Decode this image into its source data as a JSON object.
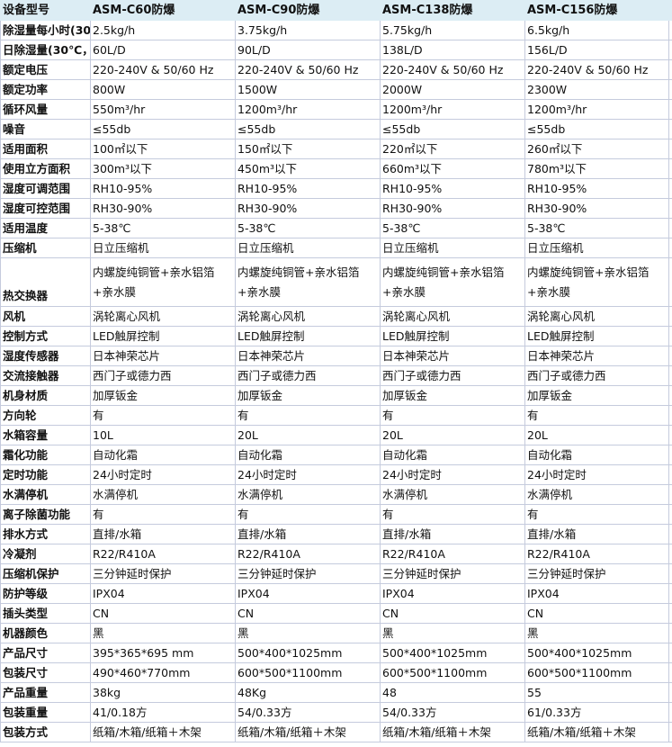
{
  "header": {
    "label": "设备型号",
    "models": [
      "ASM-C60防爆",
      "ASM-C90防爆",
      "ASM-C138防爆",
      "ASM-C156防爆"
    ]
  },
  "rows": [
    {
      "label": "除湿量每小时(30",
      "values": [
        "2.5kg/h",
        "3.75kg/h",
        "5.75kg/h",
        "6.5kg/h"
      ]
    },
    {
      "label": "日除湿量(30℃，",
      "values": [
        "60L/D",
        "90L/D",
        "138L/D",
        "156L/D"
      ]
    },
    {
      "label": "额定电压",
      "values": [
        "220-240V & 50/60 Hz",
        "220-240V & 50/60 Hz",
        "220-240V & 50/60 Hz",
        "220-240V & 50/60 Hz"
      ]
    },
    {
      "label": "额定功率",
      "values": [
        "800W",
        "1500W",
        "2000W",
        "2300W"
      ]
    },
    {
      "label": "循环风量",
      "values": [
        "550m³/hr",
        "1200m³/hr",
        "1200m³/hr",
        "1200m³/hr"
      ]
    },
    {
      "label": "噪音",
      "values": [
        "≤55db",
        "≤55db",
        "≤55db",
        "≤55db"
      ]
    },
    {
      "label": "适用面积",
      "values": [
        "100㎡以下",
        "150㎡以下",
        "220㎡以下",
        "260㎡以下"
      ]
    },
    {
      "label": "使用立方面积",
      "values": [
        "300m³以下",
        "450m³以下",
        "660m³以下",
        "780m³以下"
      ]
    },
    {
      "label": "湿度可调范围",
      "values": [
        "RH10-95%",
        "RH10-95%",
        "RH10-95%",
        "RH10-95%"
      ]
    },
    {
      "label": "湿度可控范围",
      "values": [
        "RH30-90%",
        "RH30-90%",
        "RH30-90%",
        "RH30-90%"
      ]
    },
    {
      "label": "适用温度",
      "values": [
        "5-38℃",
        "5-38℃",
        "5-38℃",
        "5-38℃"
      ]
    },
    {
      "label": "压缩机",
      "values": [
        "日立压缩机",
        "日立压缩机",
        "日立压缩机",
        "日立压缩机"
      ]
    },
    {
      "label": "热交换器",
      "tall": true,
      "values": [
        "内螺旋纯铜管+亲水铝箔+亲水膜",
        "内螺旋纯铜管+亲水铝箔+亲水膜",
        "内螺旋纯铜管+亲水铝箔+亲水膜",
        "内螺旋纯铜管+亲水铝箔+亲水膜"
      ]
    },
    {
      "label": "风机",
      "values": [
        "涡轮离心风机",
        "涡轮离心风机",
        "涡轮离心风机",
        "涡轮离心风机"
      ]
    },
    {
      "label": "控制方式",
      "values": [
        "LED触屏控制",
        "LED触屏控制",
        "LED触屏控制",
        "LED触屏控制"
      ]
    },
    {
      "label": "湿度传感器",
      "values": [
        "日本神荣芯片",
        "日本神荣芯片",
        "日本神荣芯片",
        "日本神荣芯片"
      ]
    },
    {
      "label": "交流接触器",
      "values": [
        "西门子或德力西",
        "西门子或德力西",
        "西门子或德力西",
        "西门子或德力西"
      ]
    },
    {
      "label": "机身材质",
      "values": [
        "加厚钣金",
        "加厚钣金",
        "加厚钣金",
        "加厚钣金"
      ]
    },
    {
      "label": "方向轮",
      "values": [
        "有",
        "有",
        "有",
        "有"
      ]
    },
    {
      "label": "水箱容量",
      "values": [
        "10L",
        "20L",
        "20L",
        "20L"
      ]
    },
    {
      "label": "霜化功能",
      "values": [
        "自动化霜",
        "自动化霜",
        "自动化霜",
        "自动化霜"
      ]
    },
    {
      "label": "定时功能",
      "values": [
        "24小时定时",
        "24小时定时",
        "24小时定时",
        "24小时定时"
      ]
    },
    {
      "label": "水满停机",
      "values": [
        "水满停机",
        "水满停机",
        "水满停机",
        "水满停机"
      ]
    },
    {
      "label": "离子除菌功能",
      "values": [
        "有",
        "有",
        "有",
        "有"
      ]
    },
    {
      "label": "排水方式",
      "values": [
        "直排/水箱",
        "直排/水箱",
        "直排/水箱",
        "直排/水箱"
      ]
    },
    {
      "label": "冷凝剂",
      "values": [
        "R22/R410A",
        "R22/R410A",
        "R22/R410A",
        "R22/R410A"
      ]
    },
    {
      "label": "压缩机保护",
      "values": [
        "三分钟延时保护",
        "三分钟延时保护",
        "三分钟延时保护",
        "三分钟延时保护"
      ]
    },
    {
      "label": "防护等级",
      "values": [
        "IPX04",
        "IPX04",
        "IPX04",
        "IPX04"
      ]
    },
    {
      "label": "插头类型",
      "values": [
        "CN",
        "CN",
        "CN",
        "CN"
      ]
    },
    {
      "label": "机器颜色",
      "values": [
        "黑",
        "黑",
        "黑",
        "黑"
      ]
    },
    {
      "label": "产品尺寸",
      "values": [
        "395*365*695 mm",
        "500*400*1025mm",
        "500*400*1025mm",
        "500*400*1025mm"
      ]
    },
    {
      "label": "包装尺寸",
      "values": [
        "490*460*770mm",
        "600*500*1100mm",
        "600*500*1100mm",
        "600*500*1100mm"
      ]
    },
    {
      "label": "产品重量",
      "values": [
        "38kg",
        "48Kg",
        "48",
        "55"
      ]
    },
    {
      "label": "包装重量",
      "values": [
        "41/0.18方",
        "54/0.33方",
        "54/0.33方",
        "61/0.33方"
      ]
    },
    {
      "label": "包装方式",
      "values": [
        "纸箱/木箱/纸箱＋木架",
        "纸箱/木箱/纸箱＋木架",
        "纸箱/木箱/纸箱＋木架",
        "纸箱/木箱/纸箱＋木架"
      ]
    }
  ]
}
